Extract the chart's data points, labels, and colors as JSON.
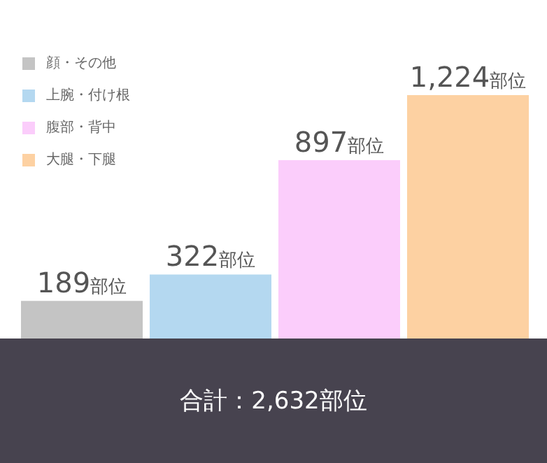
{
  "chart_data": {
    "type": "bar",
    "categories": [
      null,
      null,
      null,
      null
    ],
    "stacked": true,
    "series": [
      {
        "name": "顔・その他",
        "color": "#c4c4c4",
        "values": [
          189,
          null,
          null,
          null
        ],
        "value_labels": [
          "189部位",
          null,
          null,
          null
        ]
      },
      {
        "name": "上腕・付け根",
        "color": "#b4d8f0",
        "values": [
          null,
          322,
          null,
          null
        ],
        "value_labels": [
          null,
          "322部位",
          null,
          null
        ]
      },
      {
        "name": "腹部・背中",
        "color": "#fbcdfb",
        "values": [
          null,
          null,
          897,
          null
        ],
        "value_labels": [
          null,
          null,
          "897部位",
          null
        ]
      },
      {
        "name": "大腿・下腿",
        "color": "#fdd1a2",
        "values": [
          null,
          null,
          null,
          1224
        ],
        "value_labels": [
          null,
          null,
          null,
          "1,224部位"
        ]
      }
    ],
    "legend": "top left",
    "tick_labels": false,
    "annotations": [
      "合計：2,632部位"
    ]
  }
}
